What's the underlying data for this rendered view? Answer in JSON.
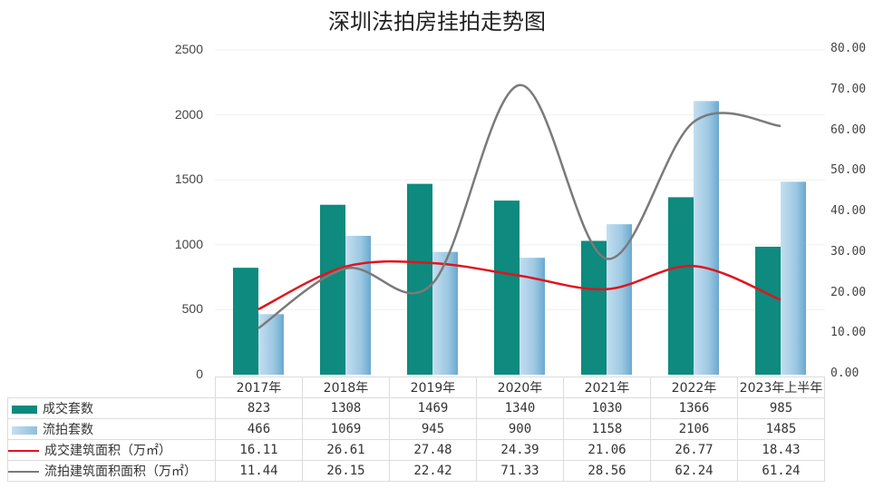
{
  "chart_data": {
    "type": "bar",
    "title": "深圳法拍房挂拍走势图",
    "categories": [
      "2017年",
      "2018年",
      "2019年",
      "2020年",
      "2021年",
      "2022年",
      "2023年上半年"
    ],
    "series": [
      {
        "name": "成交套数",
        "type": "bar",
        "axis": "left",
        "color": "#0e8a7e",
        "values": [
          823,
          1308,
          1469,
          1340,
          1030,
          1366,
          985
        ]
      },
      {
        "name": "流拍套数",
        "type": "bar",
        "axis": "left",
        "color": "#9cc8e2",
        "values": [
          466,
          1069,
          945,
          900,
          1158,
          2106,
          1485
        ]
      },
      {
        "name": "成交建筑面积（万㎡）",
        "type": "line",
        "axis": "right",
        "color": "#e0141e",
        "values": [
          16.11,
          26.61,
          27.48,
          24.39,
          21.06,
          26.77,
          18.43
        ]
      },
      {
        "name": "流拍建筑面积面积（万㎡）",
        "type": "line",
        "axis": "right",
        "color": "#7a7a7a",
        "values": [
          11.44,
          26.15,
          22.42,
          71.33,
          28.56,
          62.24,
          61.24
        ]
      }
    ],
    "ylabel_left": "",
    "ylabel_right": "",
    "ylim_left": [
      0,
      2500
    ],
    "ylim_right": [
      0,
      80
    ],
    "yticks_left": [
      "0",
      "500",
      "1000",
      "1500",
      "2000",
      "2500"
    ],
    "yticks_right": [
      "0.00",
      "10.00",
      "20.00",
      "30.00",
      "40.00",
      "50.00",
      "60.00",
      "70.00",
      "80.00"
    ],
    "legend_position": "data-table-left",
    "grid": true
  },
  "table": {
    "rows": [
      {
        "label": "成交套数",
        "values": [
          "823",
          "1308",
          "1469",
          "1340",
          "1030",
          "1366",
          "985"
        ]
      },
      {
        "label": "流拍套数",
        "values": [
          "466",
          "1069",
          "945",
          "900",
          "1158",
          "2106",
          "1485"
        ]
      },
      {
        "label": "成交建筑面积（万㎡）",
        "values": [
          "16.11",
          "26.61",
          "27.48",
          "24.39",
          "21.06",
          "26.77",
          "18.43"
        ]
      },
      {
        "label": "流拍建筑面积面积（万㎡）",
        "values": [
          "11.44",
          "26.15",
          "22.42",
          "71.33",
          "28.56",
          "62.24",
          "61.24"
        ]
      }
    ]
  }
}
